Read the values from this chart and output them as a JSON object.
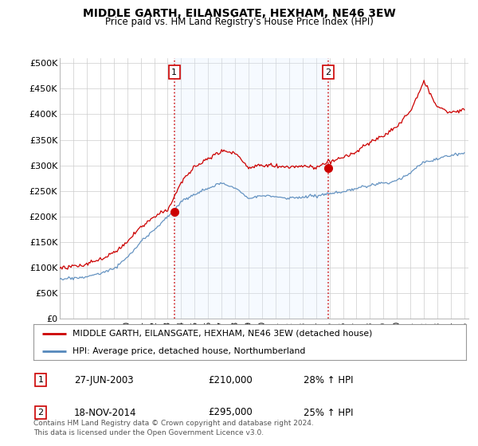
{
  "title": "MIDDLE GARTH, EILANSGATE, HEXHAM, NE46 3EW",
  "subtitle": "Price paid vs. HM Land Registry's House Price Index (HPI)",
  "ylabel_ticks": [
    "£0",
    "£50K",
    "£100K",
    "£150K",
    "£200K",
    "£250K",
    "£300K",
    "£350K",
    "£400K",
    "£450K",
    "£500K"
  ],
  "ytick_values": [
    0,
    50000,
    100000,
    150000,
    200000,
    250000,
    300000,
    350000,
    400000,
    450000,
    500000
  ],
  "ylim": [
    0,
    510000
  ],
  "xlim_start": 1995.0,
  "xlim_end": 2025.3,
  "legend_line1": "MIDDLE GARTH, EILANSGATE, HEXHAM, NE46 3EW (detached house)",
  "legend_line2": "HPI: Average price, detached house, Northumberland",
  "sale1_date": "27-JUN-2003",
  "sale1_price": 210000,
  "sale1_label": "1",
  "sale1_hpi": "28% ↑ HPI",
  "sale2_date": "18-NOV-2014",
  "sale2_price": 295000,
  "sale2_label": "2",
  "sale2_hpi": "25% ↑ HPI",
  "footer": "Contains HM Land Registry data © Crown copyright and database right 2024.\nThis data is licensed under the Open Government Licence v3.0.",
  "red_color": "#cc0000",
  "blue_color": "#5588bb",
  "shade_color": "#ddeeff",
  "sale1_x": 2003.49,
  "sale2_x": 2014.89,
  "background_color": "#ffffff",
  "grid_color": "#cccccc"
}
